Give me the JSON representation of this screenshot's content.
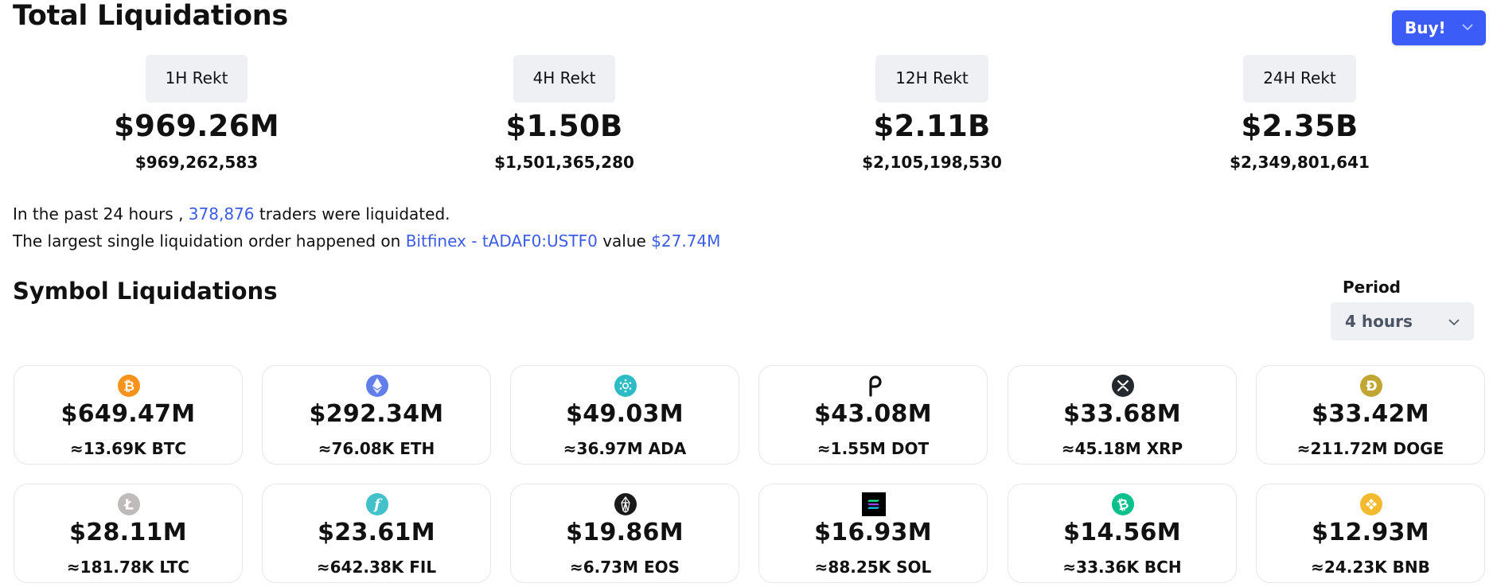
{
  "header": {
    "title": "Total Liquidations",
    "buy_label": "Buy!"
  },
  "rekt": [
    {
      "label": "1H Rekt",
      "amount": "$969.26M",
      "exact": "$969,262,583"
    },
    {
      "label": "4H Rekt",
      "amount": "$1.50B",
      "exact": "$1,501,365,280"
    },
    {
      "label": "12H Rekt",
      "amount": "$2.11B",
      "exact": "$2,105,198,530"
    },
    {
      "label": "24H Rekt",
      "amount": "$2.35B",
      "exact": "$2,349,801,641"
    }
  ],
  "summary": {
    "line1_prefix": "In the past 24 hours ,",
    "traders": "378,876",
    "line1_suffix": "traders were liquidated.",
    "line2_prefix": "The largest single liquidation order happened on",
    "exchange_symbol": "Bitfinex - tADAF0:USTF0",
    "line2_mid": "value",
    "largest_value": "$27.74M"
  },
  "symbols_section": {
    "title": "Symbol Liquidations",
    "period_label": "Period",
    "period_value": "4 hours"
  },
  "symbols": [
    {
      "amount": "$649.47M",
      "qty": "≈13.69K BTC",
      "icon": "bitcoin-icon",
      "color": "#f7931a"
    },
    {
      "amount": "$292.34M",
      "qty": "≈76.08K ETH",
      "icon": "ethereum-icon",
      "color": "#627eea"
    },
    {
      "amount": "$49.03M",
      "qty": "≈36.97M ADA",
      "icon": "cardano-icon",
      "color": "#2dbbc5"
    },
    {
      "amount": "$43.08M",
      "qty": "≈1.55M DOT",
      "icon": "polkadot-icon",
      "color": "#111111"
    },
    {
      "amount": "$33.68M",
      "qty": "≈45.18M XRP",
      "icon": "xrp-icon",
      "color": "#23292f"
    },
    {
      "amount": "$33.42M",
      "qty": "≈211.72M DOGE",
      "icon": "dogecoin-icon",
      "color": "#c2a633"
    },
    {
      "amount": "$28.11M",
      "qty": "≈181.78K LTC",
      "icon": "litecoin-icon",
      "color": "#bfbbbb"
    },
    {
      "amount": "$23.61M",
      "qty": "≈642.38K FIL",
      "icon": "filecoin-icon",
      "color": "#42c1ca"
    },
    {
      "amount": "$19.86M",
      "qty": "≈6.73M EOS",
      "icon": "eos-icon",
      "color": "#1a1a1a"
    },
    {
      "amount": "$16.93M",
      "qty": "≈88.25K SOL",
      "icon": "solana-icon",
      "color": "#000000"
    },
    {
      "amount": "$14.56M",
      "qty": "≈33.36K BCH",
      "icon": "bitcoin-cash-icon",
      "color": "#0ac18e"
    },
    {
      "amount": "$12.93M",
      "qty": "≈24.23K BNB",
      "icon": "bnb-icon",
      "color": "#f3ba2f"
    }
  ],
  "colors": {
    "accent": "#3b5cf6",
    "link": "#3b5ce6",
    "pill_bg": "#eef0f4"
  }
}
